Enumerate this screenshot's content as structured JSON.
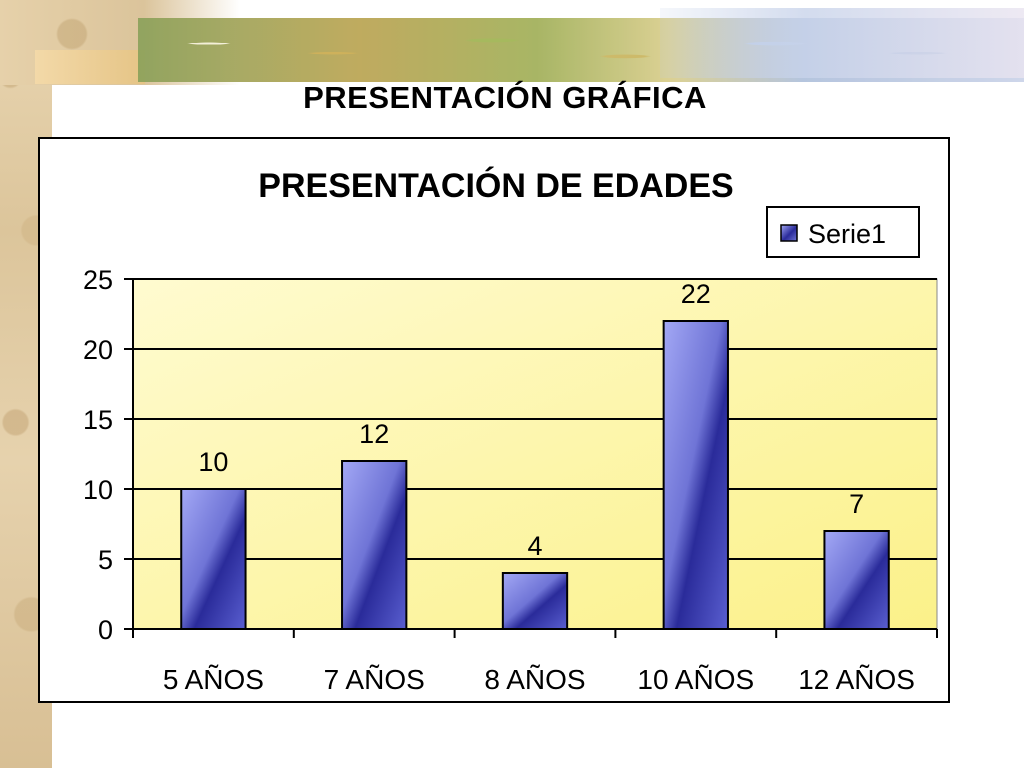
{
  "page": {
    "title": "PRESENTACIÓN GRÁFICA"
  },
  "chart_data": {
    "type": "bar",
    "title": "PRESENTACIÓN DE EDADES",
    "categories": [
      "5 AÑOS",
      "7 AÑOS",
      "8 AÑOS",
      "10 AÑOS",
      "12 AÑOS"
    ],
    "series": [
      {
        "name": "Serie1",
        "values": [
          10,
          12,
          4,
          22,
          7
        ]
      }
    ],
    "ylim": [
      0,
      25
    ],
    "yticks": [
      "0",
      "5",
      "10",
      "15",
      "20",
      "25"
    ],
    "xlabel": "",
    "ylabel": "",
    "grid": true,
    "legend": "top-right",
    "colors": {
      "plot_background": "#fdf7a8",
      "bar_light": "#9aa0f0",
      "bar_dark": "#1c1c8a",
      "gridline": "#000000"
    }
  }
}
